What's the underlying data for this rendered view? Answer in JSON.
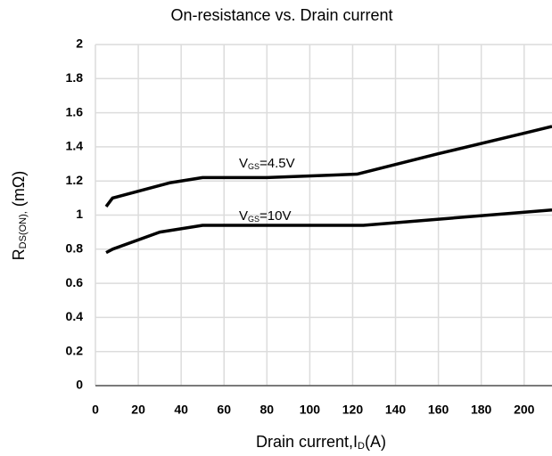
{
  "chart_data": {
    "type": "line",
    "title": "On-resistance vs. Drain current",
    "xlabel": [
      "Drain current,I",
      "D",
      "(A)"
    ],
    "ylabel": [
      "R",
      "DS(ON),",
      " (mΩ)"
    ],
    "xlim": [
      0,
      213
    ],
    "xticks": [
      0,
      20,
      40,
      60,
      80,
      100,
      120,
      140,
      160,
      180,
      200
    ],
    "ylim": [
      0,
      2
    ],
    "yticks": [
      0,
      0.2,
      0.4,
      0.6,
      0.8,
      1,
      1.2,
      1.4,
      1.6,
      1.8,
      2
    ],
    "grid": true,
    "series": [
      {
        "name": [
          "V",
          "GS",
          "=4.5V"
        ],
        "color": "#000000",
        "x": [
          5,
          8,
          20,
          35,
          50,
          80,
          122,
          160,
          200,
          213
        ],
        "values": [
          1.05,
          1.1,
          1.14,
          1.19,
          1.22,
          1.22,
          1.24,
          1.36,
          1.48,
          1.52
        ]
      },
      {
        "name": [
          "V",
          "GS",
          "=10V"
        ],
        "color": "#000000",
        "x": [
          5,
          8,
          30,
          50,
          125,
          213
        ],
        "values": [
          0.78,
          0.8,
          0.9,
          0.94,
          0.94,
          1.03
        ]
      }
    ]
  }
}
